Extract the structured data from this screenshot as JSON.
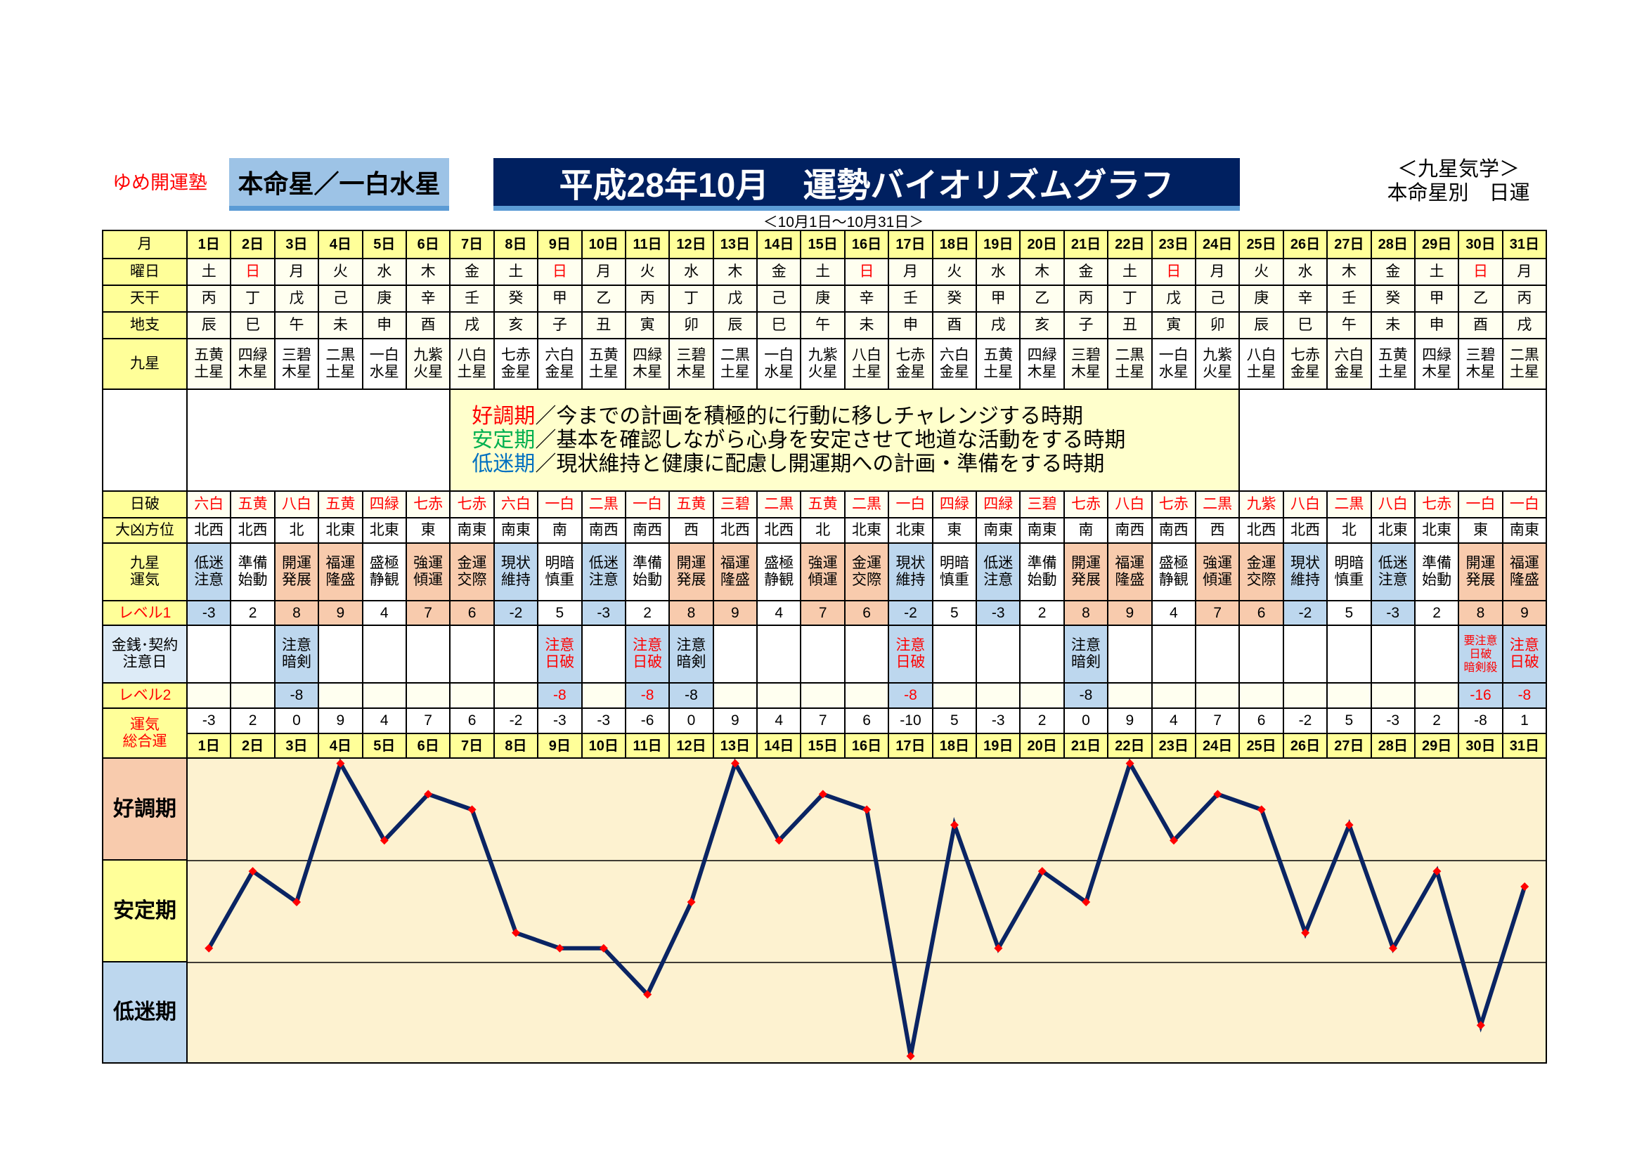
{
  "header": {
    "brand": "ゆめ開運塾",
    "honmeisei": "本命星／一白水星",
    "title": "平成28年10月　運勢バイオリズムグラフ",
    "note_line1": "＜九星気学＞",
    "note_line2": "本命星別　日運",
    "period": "＜10月1日～10月31日＞"
  },
  "labels": {
    "month": "月",
    "weekday": "曜日",
    "kan": "天干",
    "shi": "地支",
    "star": "九星",
    "nippa": "日破",
    "direction": "大凶方位",
    "unki_1": "九星",
    "unki_2": "運気",
    "level1": "レベル1",
    "caution_1": "金銭･契約",
    "caution_2": "注意日",
    "level2": "レベル2",
    "total_1": "運気",
    "total_2": "総合運"
  },
  "legend": [
    {
      "term": "好調期",
      "text": "／今までの計画を積極的に行動に移しチャレンジする時期",
      "color": "#ff0000"
    },
    {
      "term": "安定期",
      "text": "／基本を確認しながら心身を安定させて地道な活動をする時期",
      "color": "#00b050"
    },
    {
      "term": "低迷期",
      "text": "／現状維持と健康に配慮し開運期への計画・準備をする時期",
      "color": "#0070c0"
    }
  ],
  "bands": [
    {
      "label": "好調期",
      "color": "#f8cbad"
    },
    {
      "label": "安定期",
      "color": "#ffff99"
    },
    {
      "label": "低迷期",
      "color": "#bdd7ee"
    }
  ],
  "colors": {
    "good": "#f8cbad",
    "bad": "#bdd7ee",
    "line": "#0a2463",
    "marker": "#ff0000",
    "plot_bg": "#fdf2d0"
  },
  "days": [
    {
      "day": "1日",
      "weekday": "土",
      "kan": "丙",
      "shi": "辰",
      "star": [
        "五黄",
        "土星"
      ],
      "nippa": "六白",
      "direction": "北西",
      "unki": [
        "低迷",
        "注意"
      ],
      "type": "bad",
      "level1": "-3",
      "caution": [],
      "caution_red": false,
      "level2": "",
      "total": "-3"
    },
    {
      "day": "2日",
      "weekday": "日",
      "kan": "丁",
      "shi": "巳",
      "star": [
        "四緑",
        "木星"
      ],
      "nippa": "五黄",
      "direction": "北西",
      "unki": [
        "準備",
        "始動"
      ],
      "type": "neutral",
      "level1": "2",
      "caution": [],
      "caution_red": false,
      "level2": "",
      "total": "2"
    },
    {
      "day": "3日",
      "weekday": "月",
      "kan": "戊",
      "shi": "午",
      "star": [
        "三碧",
        "木星"
      ],
      "nippa": "八白",
      "direction": "北",
      "unki": [
        "開運",
        "発展"
      ],
      "type": "good",
      "level1": "8",
      "caution": [
        "注意",
        "暗剣"
      ],
      "caution_red": false,
      "level2": "-8",
      "total": "0"
    },
    {
      "day": "4日",
      "weekday": "火",
      "kan": "己",
      "shi": "未",
      "star": [
        "二黒",
        "土星"
      ],
      "nippa": "五黄",
      "direction": "北東",
      "unki": [
        "福運",
        "隆盛"
      ],
      "type": "good",
      "level1": "9",
      "caution": [],
      "caution_red": false,
      "level2": "",
      "total": "9"
    },
    {
      "day": "5日",
      "weekday": "水",
      "kan": "庚",
      "shi": "申",
      "star": [
        "一白",
        "水星"
      ],
      "nippa": "四緑",
      "direction": "北東",
      "unki": [
        "盛極",
        "静観"
      ],
      "type": "neutral",
      "level1": "4",
      "caution": [],
      "caution_red": false,
      "level2": "",
      "total": "4"
    },
    {
      "day": "6日",
      "weekday": "木",
      "kan": "辛",
      "shi": "酉",
      "star": [
        "九紫",
        "火星"
      ],
      "nippa": "七赤",
      "direction": "東",
      "unki": [
        "強運",
        "傾運"
      ],
      "type": "good",
      "level1": "7",
      "caution": [],
      "caution_red": false,
      "level2": "",
      "total": "7"
    },
    {
      "day": "7日",
      "weekday": "金",
      "kan": "壬",
      "shi": "戌",
      "star": [
        "八白",
        "土星"
      ],
      "nippa": "七赤",
      "direction": "南東",
      "unki": [
        "金運",
        "交際"
      ],
      "type": "good",
      "level1": "6",
      "caution": [],
      "caution_red": false,
      "level2": "",
      "total": "6"
    },
    {
      "day": "8日",
      "weekday": "土",
      "kan": "癸",
      "shi": "亥",
      "star": [
        "七赤",
        "金星"
      ],
      "nippa": "六白",
      "direction": "南東",
      "unki": [
        "現状",
        "維持"
      ],
      "type": "bad",
      "level1": "-2",
      "caution": [],
      "caution_red": false,
      "level2": "",
      "total": "-2"
    },
    {
      "day": "9日",
      "weekday": "日",
      "kan": "甲",
      "shi": "子",
      "star": [
        "六白",
        "金星"
      ],
      "nippa": "一白",
      "direction": "南",
      "unki": [
        "明暗",
        "慎重"
      ],
      "type": "neutral",
      "level1": "5",
      "caution": [
        "注意",
        "日破"
      ],
      "caution_red": true,
      "level2": "-8",
      "total": "-3"
    },
    {
      "day": "10日",
      "weekday": "月",
      "kan": "乙",
      "shi": "丑",
      "star": [
        "五黄",
        "土星"
      ],
      "nippa": "二黒",
      "direction": "南西",
      "unki": [
        "低迷",
        "注意"
      ],
      "type": "bad",
      "level1": "-3",
      "caution": [],
      "caution_red": false,
      "level2": "",
      "total": "-3"
    },
    {
      "day": "11日",
      "weekday": "火",
      "kan": "丙",
      "shi": "寅",
      "star": [
        "四緑",
        "木星"
      ],
      "nippa": "一白",
      "direction": "南西",
      "unki": [
        "準備",
        "始動"
      ],
      "type": "neutral",
      "level1": "2",
      "caution": [
        "注意",
        "日破"
      ],
      "caution_red": true,
      "level2": "-8",
      "total": "-6"
    },
    {
      "day": "12日",
      "weekday": "水",
      "kan": "丁",
      "shi": "卯",
      "star": [
        "三碧",
        "木星"
      ],
      "nippa": "五黄",
      "direction": "西",
      "unki": [
        "開運",
        "発展"
      ],
      "type": "good",
      "level1": "8",
      "caution": [
        "注意",
        "暗剣"
      ],
      "caution_red": false,
      "level2": "-8",
      "total": "0"
    },
    {
      "day": "13日",
      "weekday": "木",
      "kan": "戊",
      "shi": "辰",
      "star": [
        "二黒",
        "土星"
      ],
      "nippa": "三碧",
      "direction": "北西",
      "unki": [
        "福運",
        "隆盛"
      ],
      "type": "good",
      "level1": "9",
      "caution": [],
      "caution_red": false,
      "level2": "",
      "total": "9"
    },
    {
      "day": "14日",
      "weekday": "金",
      "kan": "己",
      "shi": "巳",
      "star": [
        "一白",
        "水星"
      ],
      "nippa": "二黒",
      "direction": "北西",
      "unki": [
        "盛極",
        "静観"
      ],
      "type": "neutral",
      "level1": "4",
      "caution": [],
      "caution_red": false,
      "level2": "",
      "total": "4"
    },
    {
      "day": "15日",
      "weekday": "土",
      "kan": "庚",
      "shi": "午",
      "star": [
        "九紫",
        "火星"
      ],
      "nippa": "五黄",
      "direction": "北",
      "unki": [
        "強運",
        "傾運"
      ],
      "type": "good",
      "level1": "7",
      "caution": [],
      "caution_red": false,
      "level2": "",
      "total": "7"
    },
    {
      "day": "16日",
      "weekday": "日",
      "kan": "辛",
      "shi": "未",
      "star": [
        "八白",
        "土星"
      ],
      "nippa": "二黒",
      "direction": "北東",
      "unki": [
        "金運",
        "交際"
      ],
      "type": "good",
      "level1": "6",
      "caution": [],
      "caution_red": false,
      "level2": "",
      "total": "6"
    },
    {
      "day": "17日",
      "weekday": "月",
      "kan": "壬",
      "shi": "申",
      "star": [
        "七赤",
        "金星"
      ],
      "nippa": "一白",
      "direction": "北東",
      "unki": [
        "現状",
        "維持"
      ],
      "type": "bad",
      "level1": "-2",
      "caution": [
        "注意",
        "日破"
      ],
      "caution_red": true,
      "level2": "-8",
      "total": "-10"
    },
    {
      "day": "18日",
      "weekday": "火",
      "kan": "癸",
      "shi": "酉",
      "star": [
        "六白",
        "金星"
      ],
      "nippa": "四緑",
      "direction": "東",
      "unki": [
        "明暗",
        "慎重"
      ],
      "type": "neutral",
      "level1": "5",
      "caution": [],
      "caution_red": false,
      "level2": "",
      "total": "5"
    },
    {
      "day": "19日",
      "weekday": "水",
      "kan": "甲",
      "shi": "戌",
      "star": [
        "五黄",
        "土星"
      ],
      "nippa": "四緑",
      "direction": "南東",
      "unki": [
        "低迷",
        "注意"
      ],
      "type": "bad",
      "level1": "-3",
      "caution": [],
      "caution_red": false,
      "level2": "",
      "total": "-3"
    },
    {
      "day": "20日",
      "weekday": "木",
      "kan": "乙",
      "shi": "亥",
      "star": [
        "四緑",
        "木星"
      ],
      "nippa": "三碧",
      "direction": "南東",
      "unki": [
        "準備",
        "始動"
      ],
      "type": "neutral",
      "level1": "2",
      "caution": [],
      "caution_red": false,
      "level2": "",
      "total": "2"
    },
    {
      "day": "21日",
      "weekday": "金",
      "kan": "丙",
      "shi": "子",
      "star": [
        "三碧",
        "木星"
      ],
      "nippa": "七赤",
      "direction": "南",
      "unki": [
        "開運",
        "発展"
      ],
      "type": "good",
      "level1": "8",
      "caution": [
        "注意",
        "暗剣"
      ],
      "caution_red": false,
      "level2": "-8",
      "total": "0"
    },
    {
      "day": "22日",
      "weekday": "土",
      "kan": "丁",
      "shi": "丑",
      "star": [
        "二黒",
        "土星"
      ],
      "nippa": "八白",
      "direction": "南西",
      "unki": [
        "福運",
        "隆盛"
      ],
      "type": "good",
      "level1": "9",
      "caution": [],
      "caution_red": false,
      "level2": "",
      "total": "9"
    },
    {
      "day": "23日",
      "weekday": "日",
      "kan": "戊",
      "shi": "寅",
      "star": [
        "一白",
        "水星"
      ],
      "nippa": "七赤",
      "direction": "南西",
      "unki": [
        "盛極",
        "静観"
      ],
      "type": "neutral",
      "level1": "4",
      "caution": [],
      "caution_red": false,
      "level2": "",
      "total": "4"
    },
    {
      "day": "24日",
      "weekday": "月",
      "kan": "己",
      "shi": "卯",
      "star": [
        "九紫",
        "火星"
      ],
      "nippa": "二黒",
      "direction": "西",
      "unki": [
        "強運",
        "傾運"
      ],
      "type": "good",
      "level1": "7",
      "caution": [],
      "caution_red": false,
      "level2": "",
      "total": "7"
    },
    {
      "day": "25日",
      "weekday": "火",
      "kan": "庚",
      "shi": "辰",
      "star": [
        "八白",
        "土星"
      ],
      "nippa": "九紫",
      "direction": "北西",
      "unki": [
        "金運",
        "交際"
      ],
      "type": "good",
      "level1": "6",
      "caution": [],
      "caution_red": false,
      "level2": "",
      "total": "6"
    },
    {
      "day": "26日",
      "weekday": "水",
      "kan": "辛",
      "shi": "巳",
      "star": [
        "七赤",
        "金星"
      ],
      "nippa": "八白",
      "direction": "北西",
      "unki": [
        "現状",
        "維持"
      ],
      "type": "bad",
      "level1": "-2",
      "caution": [],
      "caution_red": false,
      "level2": "",
      "total": "-2"
    },
    {
      "day": "27日",
      "weekday": "木",
      "kan": "壬",
      "shi": "午",
      "star": [
        "六白",
        "金星"
      ],
      "nippa": "二黒",
      "direction": "北",
      "unki": [
        "明暗",
        "慎重"
      ],
      "type": "neutral",
      "level1": "5",
      "caution": [],
      "caution_red": false,
      "level2": "",
      "total": "5"
    },
    {
      "day": "28日",
      "weekday": "金",
      "kan": "癸",
      "shi": "未",
      "star": [
        "五黄",
        "土星"
      ],
      "nippa": "八白",
      "direction": "北東",
      "unki": [
        "低迷",
        "注意"
      ],
      "type": "bad",
      "level1": "-3",
      "caution": [],
      "caution_red": false,
      "level2": "",
      "total": "-3"
    },
    {
      "day": "29日",
      "weekday": "土",
      "kan": "甲",
      "shi": "申",
      "star": [
        "四緑",
        "木星"
      ],
      "nippa": "七赤",
      "direction": "北東",
      "unki": [
        "準備",
        "始動"
      ],
      "type": "neutral",
      "level1": "2",
      "caution": [],
      "caution_red": false,
      "level2": "",
      "total": "2"
    },
    {
      "day": "30日",
      "weekday": "日",
      "kan": "乙",
      "shi": "酉",
      "star": [
        "三碧",
        "木星"
      ],
      "nippa": "一白",
      "direction": "東",
      "unki": [
        "開運",
        "発展"
      ],
      "type": "good",
      "level1": "8",
      "caution": [
        "要注意",
        "日破",
        "暗剣殺"
      ],
      "caution_red": true,
      "level2": "-16",
      "total": "-8"
    },
    {
      "day": "31日",
      "weekday": "月",
      "kan": "丙",
      "shi": "戌",
      "star": [
        "二黒",
        "土星"
      ],
      "nippa": "一白",
      "direction": "南東",
      "unki": [
        "福運",
        "隆盛"
      ],
      "type": "good",
      "level1": "9",
      "caution": [
        "注意",
        "日破"
      ],
      "caution_red": true,
      "level2": "-8",
      "total": "1"
    }
  ],
  "chart_data": {
    "type": "line",
    "x": [
      "1日",
      "2日",
      "3日",
      "4日",
      "5日",
      "6日",
      "7日",
      "8日",
      "9日",
      "10日",
      "11日",
      "12日",
      "13日",
      "14日",
      "15日",
      "16日",
      "17日",
      "18日",
      "19日",
      "20日",
      "21日",
      "22日",
      "23日",
      "24日",
      "25日",
      "26日",
      "27日",
      "28日",
      "29日",
      "30日",
      "31日"
    ],
    "values": [
      -3,
      2,
      0,
      9,
      4,
      7,
      6,
      -2,
      -3,
      -3,
      -6,
      0,
      9,
      4,
      7,
      6,
      -10,
      5,
      -3,
      2,
      0,
      9,
      4,
      7,
      6,
      -2,
      5,
      -3,
      2,
      -8,
      1
    ],
    "ylim": [
      -10.4,
      9.3
    ],
    "bands": [
      "好調期",
      "安定期",
      "低迷期"
    ],
    "grid": false
  }
}
